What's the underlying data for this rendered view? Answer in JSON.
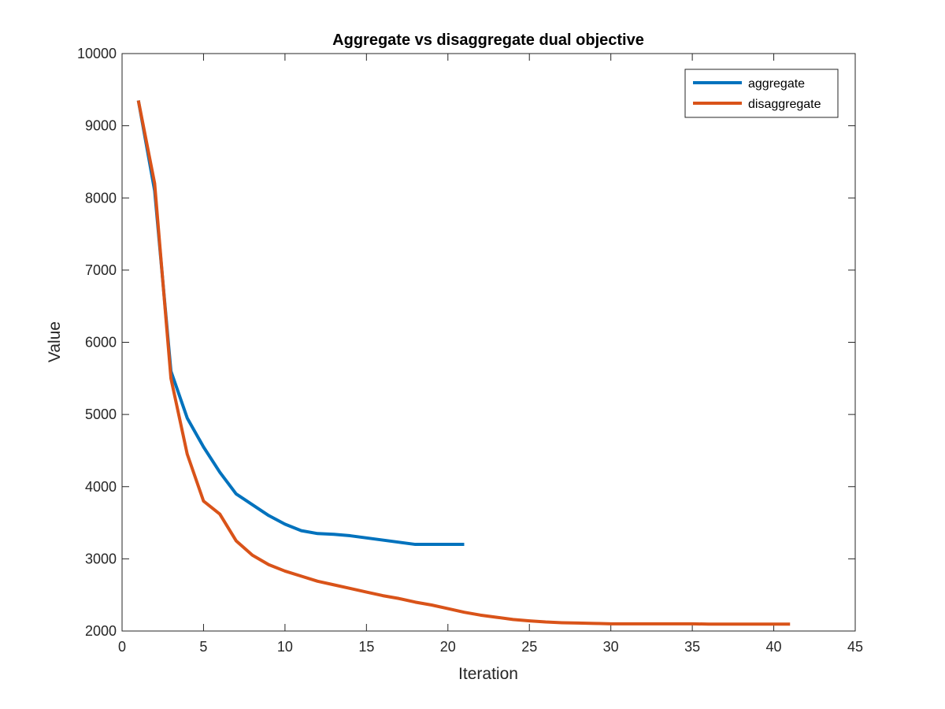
{
  "chart_data": {
    "type": "line",
    "title": "Aggregate vs disaggregate dual objective",
    "xlabel": "Iteration",
    "ylabel": "Value",
    "xlim": [
      0,
      45
    ],
    "ylim": [
      2000,
      10000
    ],
    "xticks": [
      0,
      5,
      10,
      15,
      20,
      25,
      30,
      35,
      40,
      45
    ],
    "yticks": [
      2000,
      3000,
      4000,
      5000,
      6000,
      7000,
      8000,
      9000,
      10000
    ],
    "grid": false,
    "legend_position": "top-right",
    "series": [
      {
        "name": "aggregate",
        "color": "#0072BD",
        "x": [
          1,
          2,
          3,
          4,
          5,
          6,
          7,
          8,
          9,
          10,
          11,
          12,
          13,
          14,
          15,
          16,
          17,
          18,
          19,
          20,
          21
        ],
        "y": [
          9350,
          8100,
          5600,
          4950,
          4550,
          4200,
          3900,
          3750,
          3600,
          3480,
          3390,
          3350,
          3340,
          3320,
          3290,
          3260,
          3230,
          3200,
          3200,
          3200,
          3200
        ]
      },
      {
        "name": "disaggregate",
        "color": "#D95319",
        "x": [
          1,
          2,
          3,
          4,
          5,
          6,
          7,
          8,
          9,
          10,
          11,
          12,
          13,
          14,
          15,
          16,
          17,
          18,
          19,
          20,
          21,
          22,
          23,
          24,
          25,
          26,
          27,
          28,
          29,
          30,
          31,
          32,
          33,
          34,
          35,
          36,
          37,
          38,
          39,
          40,
          41
        ],
        "y": [
          9350,
          8200,
          5500,
          4450,
          3800,
          3620,
          3250,
          3050,
          2920,
          2830,
          2760,
          2690,
          2640,
          2590,
          2540,
          2490,
          2450,
          2400,
          2360,
          2310,
          2260,
          2220,
          2190,
          2160,
          2140,
          2125,
          2115,
          2110,
          2105,
          2100,
          2100,
          2100,
          2100,
          2100,
          2100,
          2095,
          2095,
          2095,
          2095,
          2095,
          2095
        ]
      }
    ]
  }
}
